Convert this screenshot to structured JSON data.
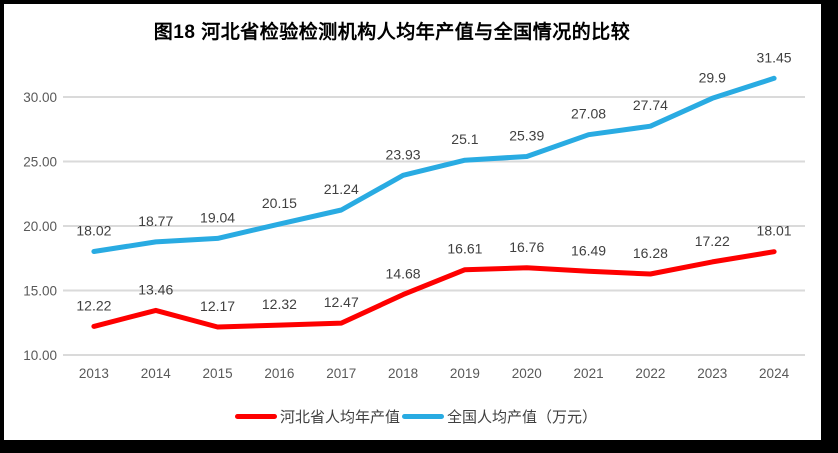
{
  "chart_data": {
    "type": "line",
    "title": "图18 河北省检验检测机构人均年产值与全国情况的比较",
    "categories": [
      "2013",
      "2014",
      "2015",
      "2016",
      "2017",
      "2018",
      "2019",
      "2020",
      "2021",
      "2022",
      "2023",
      "2024"
    ],
    "series": [
      {
        "name": "河北省人均年产值",
        "color": "#FE0000",
        "values": [
          12.22,
          13.46,
          12.17,
          12.32,
          12.47,
          14.68,
          16.61,
          16.76,
          16.49,
          16.28,
          17.22,
          18.01
        ]
      },
      {
        "name": "全国人均产值（万元）",
        "color": "#29ABE2",
        "values": [
          18.02,
          18.77,
          19.04,
          20.15,
          21.24,
          23.93,
          25.1,
          25.39,
          27.08,
          27.74,
          29.9,
          31.45
        ]
      }
    ],
    "y_ticks": [
      {
        "value": 10,
        "label": "10.00"
      },
      {
        "value": 15,
        "label": "15.00"
      },
      {
        "value": 20,
        "label": "20.00"
      },
      {
        "value": 25,
        "label": "25.00"
      },
      {
        "value": 30,
        "label": "30.00"
      }
    ],
    "ylim": [
      10,
      32.5
    ],
    "grid": true,
    "data_labels": true,
    "legend_position": "bottom",
    "colors": {
      "gridline": "#DADADA",
      "tick_text": "#595959",
      "data_label_text": "#404040",
      "background": "#FFFFFF",
      "frame_border": "#000000"
    }
  }
}
